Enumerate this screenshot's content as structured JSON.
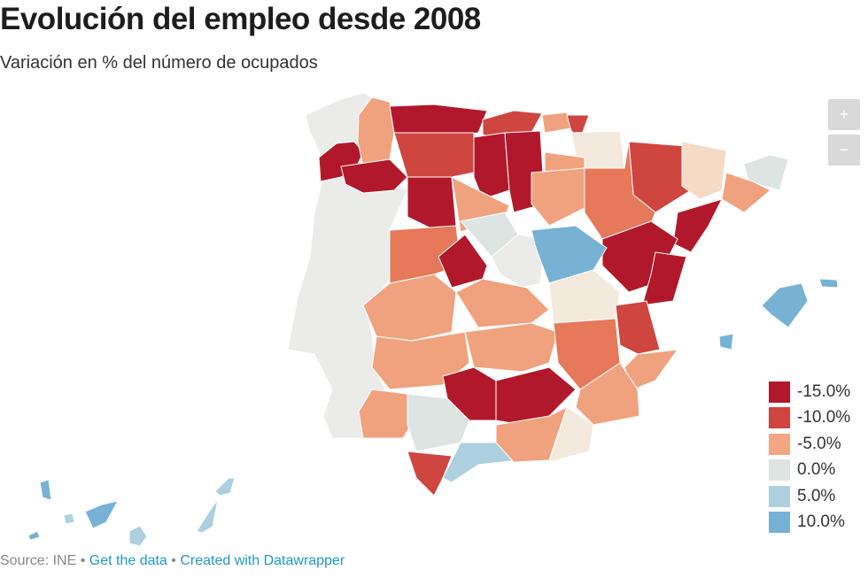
{
  "header": {
    "title": "Evolución del empleo desde 2008",
    "subtitle": "Variación en % del número de ocupados"
  },
  "zoom_controls": {
    "zoom_in": "+",
    "zoom_out": "−"
  },
  "legend": [
    {
      "label": "-15.0%",
      "color": "#b2182b"
    },
    {
      "label": "-10.0%",
      "color": "#cf4540"
    },
    {
      "label": "-5.0%",
      "color": "#f4a582"
    },
    {
      "label": "0.0%",
      "color": "#dde4e2"
    },
    {
      "label": "5.0%",
      "color": "#acd0df"
    },
    {
      "label": "10.0%",
      "color": "#77b2d4"
    }
  ],
  "colors": {
    "no_data": "#ebebea",
    "orange": "#e5795a",
    "light_orange": "#f0a27f",
    "pale": "#f5dac6",
    "cream": "#f3e9dc"
  },
  "footer": {
    "source": "Source: INE",
    "separator": " • ",
    "get_data": "Get the data",
    "created_with": "Created with Datawrapper"
  }
}
